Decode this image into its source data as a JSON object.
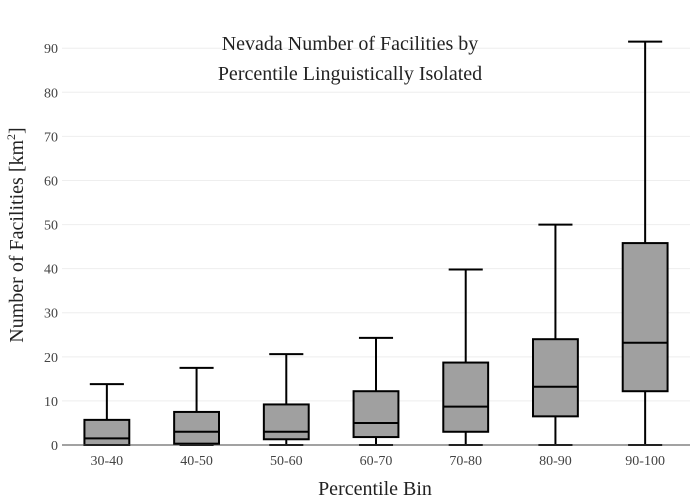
{
  "chart_data": {
    "type": "box",
    "title_lines": [
      "Nevada Number of Facilities by",
      "Percentile Linguistically Isolated"
    ],
    "xlabel": "Percentile Bin",
    "ylabel": "Number of Facilities  [km",
    "ylabel_superscript": "2",
    "ylabel_suffix": "]",
    "ylim": [
      0,
      93
    ],
    "yticks": [
      0,
      10,
      20,
      30,
      40,
      50,
      60,
      70,
      80,
      90
    ],
    "grid": true,
    "box_fill": "#a0a0a0",
    "box_stroke": "#000000",
    "categories": [
      "30-40",
      "40-50",
      "50-60",
      "60-70",
      "70-80",
      "80-90",
      "90-100"
    ],
    "boxes": [
      {
        "category": "30-40",
        "min": 0,
        "q1": 0,
        "median": 1.5,
        "q3": 5.7,
        "max": 13.8
      },
      {
        "category": "40-50",
        "min": 0,
        "q1": 0.3,
        "median": 3,
        "q3": 7.5,
        "max": 17.5
      },
      {
        "category": "50-60",
        "min": 0,
        "q1": 1.3,
        "median": 3,
        "q3": 9.2,
        "max": 20.6
      },
      {
        "category": "60-70",
        "min": 0,
        "q1": 1.8,
        "median": 5,
        "q3": 12.2,
        "max": 24.3
      },
      {
        "category": "70-80",
        "min": 0,
        "q1": 3,
        "median": 8.7,
        "q3": 18.7,
        "max": 39.8
      },
      {
        "category": "80-90",
        "min": 0,
        "q1": 6.5,
        "median": 13.2,
        "q3": 24,
        "max": 50
      },
      {
        "category": "90-100",
        "min": 0,
        "q1": 12.2,
        "median": 23.2,
        "q3": 45.8,
        "max": 91.5
      }
    ]
  }
}
